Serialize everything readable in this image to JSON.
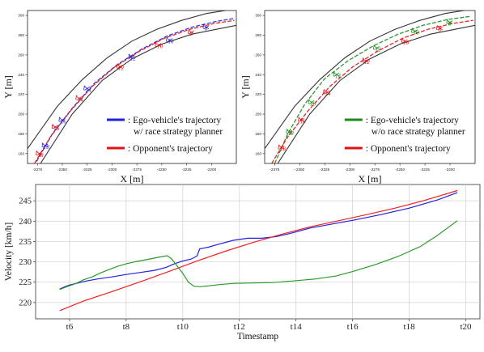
{
  "chart_data": [
    {
      "type": "line",
      "xlabel": "X [m]",
      "ylabel": "Y [m]",
      "xlim": [
        -2385,
        -2175
      ],
      "ylim": [
        150,
        305
      ],
      "xticks": [
        -2375,
        -2350,
        -2325,
        -2300,
        -2275,
        -2250,
        -2225,
        -2200
      ],
      "yticks": [
        160,
        180,
        200,
        220,
        240,
        260,
        280,
        300
      ],
      "track_bounds": [
        {
          "x": [
            -2385,
            -2355,
            -2330,
            -2305,
            -2280,
            -2255,
            -2230,
            -2205,
            -2180
          ],
          "y": [
            165,
            208,
            235,
            257,
            274,
            286,
            295,
            302,
            306
          ]
        },
        {
          "x": [
            -2372,
            -2340,
            -2310,
            -2280,
            -2250,
            -2220,
            -2195,
            -2175
          ],
          "y": [
            150,
            200,
            234,
            256,
            271,
            281,
            286,
            290
          ]
        }
      ],
      "series": [
        {
          "name": "Ego-vehicle's trajectory w/ race strategy planner",
          "color": "#1f1fe0",
          "style": "dashed",
          "x": [
            -2376,
            -2360,
            -2340,
            -2318,
            -2295,
            -2270,
            -2245,
            -2220,
            -2195,
            -2177
          ],
          "y": [
            152,
            180,
            206,
            231,
            250,
            266,
            279,
            288,
            294,
            297
          ]
        },
        {
          "name": "Opponent's trajectory",
          "color": "#e01010",
          "style": "dashed",
          "x": [
            -2378,
            -2362,
            -2342,
            -2320,
            -2297,
            -2272,
            -2247,
            -2222,
            -2197,
            -2177
          ],
          "y": [
            150,
            177,
            203,
            228,
            248,
            264,
            277,
            286,
            292,
            295
          ]
        }
      ],
      "time_labels": [
        {
          "text": "t18",
          "series": 0,
          "x": -2367,
          "y": 168
        },
        {
          "text": "t16",
          "series": 0,
          "x": -2350,
          "y": 194
        },
        {
          "text": "t14",
          "series": 0,
          "x": -2325,
          "y": 226
        },
        {
          "text": "t12",
          "series": 0,
          "x": -2280,
          "y": 258
        },
        {
          "text": "t10",
          "series": 0,
          "x": -2242,
          "y": 275
        },
        {
          "text": "t8",
          "series": 0,
          "x": -2205,
          "y": 288
        },
        {
          "text": "t18",
          "series": 1,
          "x": -2373,
          "y": 160
        },
        {
          "text": "t16",
          "series": 1,
          "x": -2357,
          "y": 187
        },
        {
          "text": "t14",
          "series": 1,
          "x": -2333,
          "y": 216
        },
        {
          "text": "t12",
          "series": 1,
          "x": -2292,
          "y": 248
        },
        {
          "text": "t10",
          "series": 1,
          "x": -2253,
          "y": 270
        },
        {
          "text": "t8",
          "series": 1,
          "x": -2220,
          "y": 283
        }
      ],
      "legend": [
        {
          "label": ": Ego-vehicle's trajectory",
          "label2": "w/ race strategy planner",
          "color": "#1f1fe0"
        },
        {
          "label": ": Opponent's trajectory",
          "label2": "",
          "color": "#e01010"
        }
      ]
    },
    {
      "type": "line",
      "xlabel": "X [m]",
      "ylabel": "Y [m]",
      "xlim": [
        -2385,
        -2175
      ],
      "ylim": [
        150,
        305
      ],
      "xticks": [
        -2375,
        -2350,
        -2325,
        -2300,
        -2275,
        -2250,
        -2225,
        -2200
      ],
      "yticks": [
        160,
        180,
        200,
        220,
        240,
        260,
        280,
        300
      ],
      "track_bounds": [
        {
          "x": [
            -2385,
            -2355,
            -2330,
            -2305,
            -2280,
            -2255,
            -2230,
            -2205,
            -2180
          ],
          "y": [
            165,
            208,
            235,
            257,
            274,
            286,
            295,
            302,
            306
          ]
        },
        {
          "x": [
            -2372,
            -2340,
            -2310,
            -2280,
            -2250,
            -2220,
            -2195,
            -2175
          ],
          "y": [
            150,
            200,
            234,
            256,
            271,
            281,
            286,
            290
          ]
        }
      ],
      "series": [
        {
          "name": "Ego-vehicle's trajectory w/o race strategy planner",
          "color": "#1a8a1a",
          "style": "dashed",
          "x": [
            -2375,
            -2362,
            -2345,
            -2325,
            -2302,
            -2277,
            -2252,
            -2227,
            -2202,
            -2180
          ],
          "y": [
            150,
            180,
            210,
            236,
            254,
            269,
            281,
            290,
            296,
            299
          ]
        },
        {
          "name": "Opponent's trajectory",
          "color": "#e01010",
          "style": "dashed",
          "x": [
            -2378,
            -2362,
            -2342,
            -2320,
            -2297,
            -2272,
            -2247,
            -2222,
            -2197,
            -2177
          ],
          "y": [
            150,
            177,
            203,
            228,
            248,
            264,
            277,
            286,
            292,
            295
          ]
        }
      ],
      "time_labels": [
        {
          "text": "t18",
          "series": 0,
          "x": -2360,
          "y": 182
        },
        {
          "text": "t16",
          "series": 0,
          "x": -2338,
          "y": 212
        },
        {
          "text": "t14",
          "series": 0,
          "x": -2313,
          "y": 240
        },
        {
          "text": "t12",
          "series": 0,
          "x": -2273,
          "y": 267
        },
        {
          "text": "t10",
          "series": 0,
          "x": -2235,
          "y": 284
        },
        {
          "text": "t8",
          "series": 0,
          "x": -2200,
          "y": 293
        },
        {
          "text": "t18",
          "series": 1,
          "x": -2368,
          "y": 166
        },
        {
          "text": "t16",
          "series": 1,
          "x": -2348,
          "y": 194
        },
        {
          "text": "t14",
          "series": 1,
          "x": -2323,
          "y": 222
        },
        {
          "text": "t12",
          "series": 1,
          "x": -2284,
          "y": 254
        },
        {
          "text": "t10",
          "series": 1,
          "x": -2245,
          "y": 274
        },
        {
          "text": "t8",
          "series": 1,
          "x": -2210,
          "y": 287
        }
      ],
      "legend": [
        {
          "label": ": Ego-vehicle's trajectory",
          "label2": "w/o race strategy planner",
          "color": "#1a8a1a"
        },
        {
          "label": ": Opponent's trajectory",
          "label2": "",
          "color": "#e01010"
        }
      ]
    },
    {
      "type": "line",
      "xlabel": "Timestamp",
      "ylabel": "Velocity [km/h]",
      "xlim": [
        4.8,
        20.5
      ],
      "ylim": [
        216,
        249
      ],
      "xticks": [
        6,
        8,
        10,
        12,
        14,
        16,
        18,
        20
      ],
      "xticklabels": [
        "t6",
        "t8",
        "t10",
        "t12",
        "t14",
        "t16",
        "t18",
        "t20"
      ],
      "yticks": [
        220,
        225,
        230,
        235,
        240,
        245
      ],
      "grid": true,
      "series": [
        {
          "name": "",
          "color": "#2020e0",
          "x": [
            5.65,
            5.8,
            6.0,
            6.3,
            6.6,
            7.0,
            7.5,
            8.0,
            8.5,
            9.0,
            9.4,
            9.7,
            10.0,
            10.3,
            10.5,
            10.6,
            10.9,
            11.3,
            11.8,
            12.3,
            12.8,
            13.3,
            13.8,
            14.5,
            15.2,
            16.0,
            17.0,
            18.0,
            19.0,
            19.7
          ],
          "y": [
            223.3,
            223.8,
            224.3,
            224.8,
            225.3,
            225.8,
            226.3,
            226.9,
            227.4,
            227.9,
            228.6,
            229.5,
            230.2,
            230.7,
            231.4,
            233.2,
            233.6,
            234.4,
            235.3,
            235.8,
            235.8,
            236.2,
            237.0,
            238.3,
            239.2,
            240.2,
            241.6,
            243.2,
            245.2,
            247.0
          ]
        },
        {
          "name": "",
          "color": "#f02020",
          "x": [
            5.65,
            6.5,
            7.5,
            8.5,
            9.5,
            10.5,
            11.5,
            12.5,
            13.5,
            14.5,
            15.5,
            16.5,
            17.5,
            18.5,
            19.7
          ],
          "y": [
            218.0,
            220.4,
            222.7,
            225.1,
            227.6,
            230.2,
            232.6,
            234.8,
            236.8,
            238.6,
            240.1,
            241.6,
            243.2,
            245.0,
            247.5
          ]
        },
        {
          "name": "",
          "color": "#2a9a2a",
          "x": [
            5.65,
            5.9,
            6.2,
            6.5,
            6.8,
            7.1,
            7.4,
            7.7,
            8.0,
            8.3,
            8.6,
            8.9,
            9.2,
            9.45,
            9.6,
            9.8,
            10.0,
            10.2,
            10.4,
            10.6,
            10.9,
            11.3,
            11.8,
            12.5,
            13.2,
            13.9,
            14.7,
            15.4,
            16.0,
            16.8,
            17.6,
            18.4,
            19.0,
            19.7
          ],
          "y": [
            223.2,
            223.9,
            224.6,
            225.6,
            226.3,
            227.3,
            228.1,
            228.9,
            229.5,
            230.0,
            230.4,
            230.8,
            231.2,
            231.5,
            230.8,
            229.0,
            227.2,
            225.0,
            224.0,
            223.9,
            224.1,
            224.4,
            224.7,
            224.8,
            224.9,
            225.3,
            225.8,
            226.5,
            227.6,
            229.3,
            231.3,
            233.8,
            236.5,
            240.1
          ]
        }
      ]
    }
  ]
}
